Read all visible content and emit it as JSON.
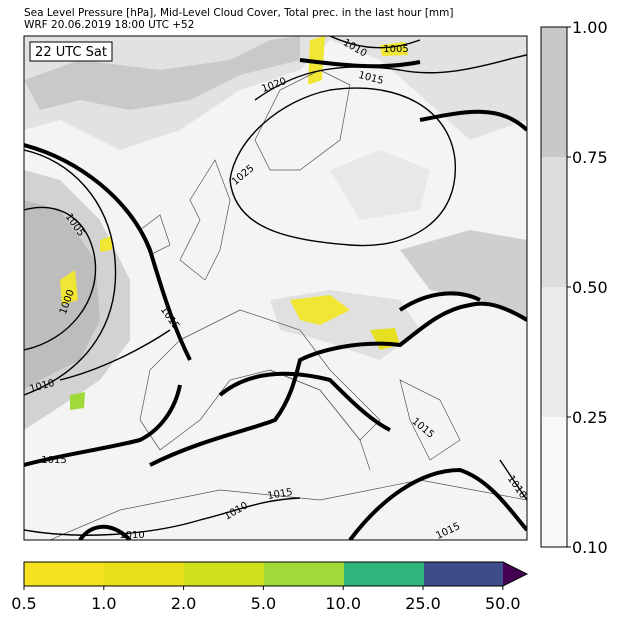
{
  "header": {
    "line1": "Sea Level Pressure [hPa], Mid-Level Cloud Cover, Total prec. in the last hour [mm]",
    "line2": "WRF 20.06.2019 18:00 UTC +52"
  },
  "map": {
    "time_label": "22 UTC Sat",
    "isobar_labels": [
      "1005",
      "1000",
      "1010",
      "1015",
      "1015",
      "1020",
      "1025",
      "1010",
      "1005",
      "1015",
      "1015",
      "1010",
      "1010",
      "1015",
      "1015",
      "1010"
    ]
  },
  "cloud_colorbar": {
    "ticks": [
      "1.00",
      "0.75",
      "0.50",
      "0.25",
      "0.10"
    ]
  },
  "precip_colorbar": {
    "ticks": [
      "0.5",
      "1.0",
      "2.0",
      "5.0",
      "10.0",
      "25.0",
      "50.0"
    ]
  }
}
